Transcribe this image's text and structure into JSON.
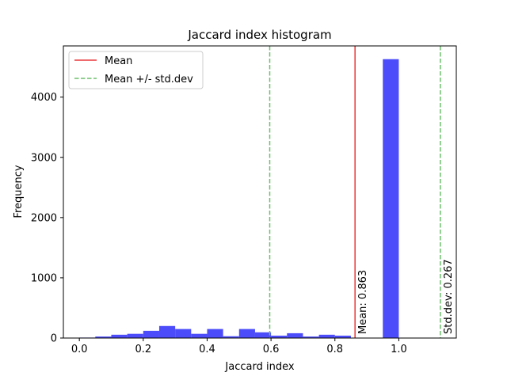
{
  "chart_data": {
    "type": "bar",
    "title": "Jaccard index histogram",
    "xlabel": "Jaccard index",
    "ylabel": "Frequency",
    "xlim": [
      -0.05,
      1.18
    ],
    "ylim": [
      0,
      4850
    ],
    "xticks": [
      0.0,
      0.2,
      0.4,
      0.6,
      0.8,
      1.0
    ],
    "xtick_labels": [
      "0.0",
      "0.2",
      "0.4",
      "0.6",
      "0.8",
      "1.0"
    ],
    "yticks": [
      0,
      1000,
      2000,
      3000,
      4000
    ],
    "ytick_labels": [
      "0",
      "1000",
      "2000",
      "3000",
      "4000"
    ],
    "grid": false,
    "legend_position": "top-left",
    "bar_color": "#4646fa",
    "bins": [
      {
        "x0": 0.0,
        "x1": 0.05,
        "count": 8
      },
      {
        "x0": 0.05,
        "x1": 0.1,
        "count": 25
      },
      {
        "x0": 0.1,
        "x1": 0.15,
        "count": 55
      },
      {
        "x0": 0.15,
        "x1": 0.2,
        "count": 70
      },
      {
        "x0": 0.2,
        "x1": 0.25,
        "count": 120
      },
      {
        "x0": 0.25,
        "x1": 0.3,
        "count": 200
      },
      {
        "x0": 0.3,
        "x1": 0.35,
        "count": 150
      },
      {
        "x0": 0.35,
        "x1": 0.4,
        "count": 70
      },
      {
        "x0": 0.4,
        "x1": 0.45,
        "count": 150
      },
      {
        "x0": 0.45,
        "x1": 0.5,
        "count": 30
      },
      {
        "x0": 0.5,
        "x1": 0.55,
        "count": 150
      },
      {
        "x0": 0.55,
        "x1": 0.6,
        "count": 95
      },
      {
        "x0": 0.6,
        "x1": 0.65,
        "count": 40
      },
      {
        "x0": 0.65,
        "x1": 0.7,
        "count": 80
      },
      {
        "x0": 0.7,
        "x1": 0.75,
        "count": 25
      },
      {
        "x0": 0.75,
        "x1": 0.8,
        "count": 55
      },
      {
        "x0": 0.8,
        "x1": 0.85,
        "count": 40
      },
      {
        "x0": 0.85,
        "x1": 0.9,
        "count": 5
      },
      {
        "x0": 0.9,
        "x1": 0.95,
        "count": 5
      },
      {
        "x0": 0.95,
        "x1": 1.0,
        "count": 4630
      }
    ],
    "reference_lines": [
      {
        "kind": "mean",
        "x": 0.863,
        "color": "#e8393b",
        "style": "solid"
      },
      {
        "kind": "std_low",
        "x": 0.596,
        "color": "#6cbf6c",
        "style": "dashed"
      },
      {
        "kind": "std_high",
        "x": 1.13,
        "color": "#6cbf6c",
        "style": "dashed"
      }
    ],
    "legend": [
      {
        "label": "Mean",
        "color": "#e8393b",
        "style": "solid"
      },
      {
        "label": "Mean +/- std.dev",
        "color": "#6cbf6c",
        "style": "dashed"
      }
    ],
    "annotations": {
      "mean_text": "Mean: 0.863",
      "std_text": "Std.dev: 0.267"
    }
  }
}
